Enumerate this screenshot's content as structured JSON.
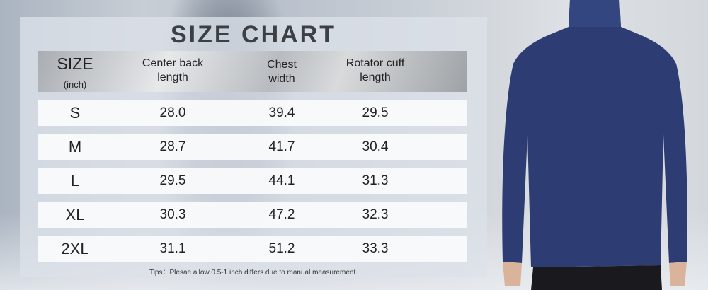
{
  "title": "SIZE CHART",
  "headers": {
    "size": "SIZE",
    "unit": "(inch)",
    "center_back_1": "Center back",
    "center_back_2": "length",
    "chest_1": "Chest",
    "chest_2": "width",
    "cuff_1": "Rotator cuff",
    "cuff_2": "length"
  },
  "rows": [
    {
      "size": "S",
      "center_back": "28.0",
      "chest": "39.4",
      "cuff": "29.5"
    },
    {
      "size": "M",
      "center_back": "28.7",
      "chest": "41.7",
      "cuff": "30.4"
    },
    {
      "size": "L",
      "center_back": "29.5",
      "chest": "44.1",
      "cuff": "31.3"
    },
    {
      "size": "XL",
      "center_back": "30.3",
      "chest": "47.2",
      "cuff": "32.3"
    },
    {
      "size": "2XL",
      "center_back": "31.1",
      "chest": "51.2",
      "cuff": "33.3"
    }
  ],
  "tips": "Tips：Plesae allow 0.5-1 inch differs due to manual measurement.",
  "colors": {
    "shirt": "#2d3d73",
    "title": "#3c4046"
  }
}
